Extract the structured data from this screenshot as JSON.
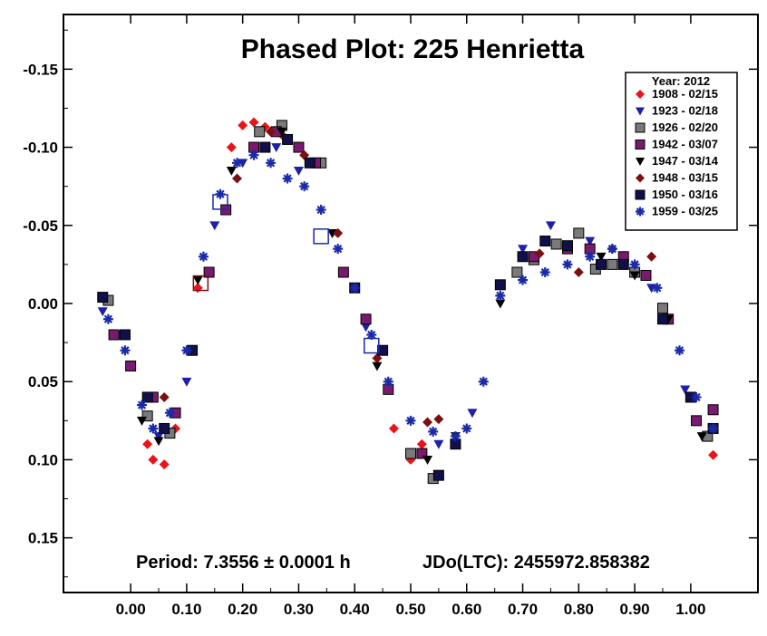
{
  "chart_data": {
    "type": "scatter",
    "title": "Phased Plot: 225 Henrietta",
    "xlabel": "",
    "ylabel": "",
    "xlim": [
      -0.12,
      1.12
    ],
    "ylim": [
      0.185,
      -0.185
    ],
    "y_inverted": true,
    "x_ticks": [
      "0.00",
      "0.10",
      "0.20",
      "0.30",
      "0.40",
      "0.50",
      "0.60",
      "0.70",
      "0.80",
      "0.90",
      "1.00"
    ],
    "y_ticks": [
      "-0.15",
      "-0.10",
      "-0.05",
      "0.00",
      "0.05",
      "0.10",
      "0.15"
    ],
    "grid": false,
    "legend_position": "top-right",
    "legend_title": "Year: 2012",
    "annotations": {
      "period": "Period: 7.3556 ± 0.0001 h",
      "epoch": "JDo(LTC): 2455972.858382"
    },
    "series": [
      {
        "name": "1908 - 02/15",
        "marker": "diamond",
        "color": "#e8141a",
        "x": [
          0.03,
          0.04,
          0.06,
          0.08,
          0.12,
          0.18,
          0.2,
          0.22,
          0.24,
          0.27,
          0.47,
          0.5,
          0.52,
          1.04
        ],
        "y": [
          0.09,
          0.1,
          0.103,
          0.08,
          -0.01,
          -0.1,
          -0.114,
          -0.116,
          -0.113,
          -0.108,
          0.08,
          0.1,
          0.09,
          0.097
        ]
      },
      {
        "name": "1923 - 02/18",
        "marker": "triangle-down",
        "color": "#1f1fa8",
        "x": [
          -0.05,
          -0.02,
          0.05,
          0.1,
          0.15,
          0.2,
          0.26,
          0.3,
          0.36,
          0.42,
          0.55,
          0.61,
          0.7,
          0.75,
          0.82,
          0.88,
          0.93,
          0.99
        ],
        "y": [
          0.005,
          0.02,
          0.085,
          0.05,
          -0.05,
          -0.09,
          -0.1,
          -0.085,
          -0.045,
          0.015,
          0.09,
          0.07,
          -0.035,
          -0.05,
          -0.04,
          -0.03,
          -0.01,
          0.055
        ]
      },
      {
        "name": "1926 - 02/20",
        "marker": "square",
        "color": "#7a7a7a",
        "x": [
          -0.04,
          0.03,
          0.07,
          0.23,
          0.27,
          0.34,
          0.5,
          0.54,
          0.69,
          0.72,
          0.76,
          0.8,
          0.83,
          0.86,
          0.9,
          0.95,
          1.03
        ],
        "y": [
          -0.002,
          0.072,
          0.083,
          -0.11,
          -0.114,
          -0.09,
          0.096,
          0.112,
          -0.02,
          -0.028,
          -0.038,
          -0.045,
          -0.022,
          -0.025,
          -0.02,
          0.003,
          0.085
        ]
      },
      {
        "name": "1942 - 03/07",
        "marker": "square",
        "color": "#7a1a6e",
        "x": [
          -0.03,
          0.0,
          0.04,
          0.08,
          0.14,
          0.17,
          0.22,
          0.26,
          0.3,
          0.33,
          0.38,
          0.42,
          0.46,
          0.52,
          0.72,
          0.78,
          0.82,
          0.88,
          0.92,
          0.96,
          1.01,
          1.04
        ],
        "y": [
          0.02,
          0.04,
          0.06,
          0.07,
          -0.02,
          -0.06,
          -0.1,
          -0.11,
          -0.1,
          -0.09,
          -0.02,
          0.01,
          0.055,
          0.096,
          -0.03,
          -0.035,
          -0.035,
          -0.03,
          -0.018,
          0.01,
          0.075,
          0.068
        ]
      },
      {
        "name": "1947 - 03/14",
        "marker": "triangle-down",
        "color": "#000000",
        "x": [
          0.02,
          0.05,
          0.12,
          0.18,
          0.27,
          0.36,
          0.44,
          0.53,
          0.58,
          0.66,
          0.74,
          0.84,
          0.9,
          0.96,
          1.02
        ],
        "y": [
          0.075,
          0.088,
          -0.015,
          -0.085,
          -0.11,
          -0.045,
          0.04,
          0.1,
          0.085,
          0.0,
          -0.04,
          -0.03,
          -0.018,
          0.01,
          0.085
        ]
      },
      {
        "name": "1948 - 03/15",
        "marker": "diamond",
        "color": "#7a1010",
        "x": [
          0.06,
          0.19,
          0.25,
          0.31,
          0.37,
          0.44,
          0.53,
          0.55,
          0.73,
          0.8,
          0.86,
          0.93
        ],
        "y": [
          0.06,
          -0.08,
          -0.11,
          -0.095,
          -0.045,
          0.035,
          0.076,
          0.074,
          -0.032,
          -0.02,
          -0.035,
          -0.03
        ],
        "open_x": [
          0.125
        ],
        "open_y": [
          -0.013
        ]
      },
      {
        "name": "1950 - 03/16",
        "marker": "square",
        "color": "#10104a",
        "x": [
          -0.05,
          -0.01,
          0.03,
          0.06,
          0.11,
          0.24,
          0.28,
          0.32,
          0.4,
          0.45,
          0.55,
          0.58,
          0.66,
          0.7,
          0.74,
          0.78,
          0.84,
          0.88,
          0.95,
          1.0,
          1.04
        ],
        "y": [
          -0.004,
          0.02,
          0.06,
          0.08,
          0.03,
          -0.1,
          -0.105,
          -0.09,
          -0.01,
          0.03,
          0.11,
          0.09,
          -0.012,
          -0.03,
          -0.04,
          -0.037,
          -0.025,
          -0.025,
          0.01,
          0.06,
          0.08
        ]
      },
      {
        "name": "1959 - 03/25",
        "marker": "asterisk",
        "color": "#1a2aa8",
        "x": [
          -0.04,
          -0.01,
          0.02,
          0.04,
          0.07,
          0.1,
          0.13,
          0.16,
          0.19,
          0.22,
          0.25,
          0.28,
          0.31,
          0.34,
          0.37,
          0.4,
          0.43,
          0.46,
          0.5,
          0.54,
          0.58,
          0.6,
          0.63,
          0.66,
          0.7,
          0.74,
          0.78,
          0.82,
          0.86,
          0.9,
          0.94,
          0.98,
          1.01,
          1.04
        ],
        "y": [
          0.01,
          0.03,
          0.065,
          0.08,
          0.07,
          0.03,
          -0.03,
          -0.07,
          -0.09,
          -0.095,
          -0.09,
          -0.08,
          -0.075,
          -0.06,
          -0.035,
          -0.01,
          0.02,
          0.05,
          0.075,
          0.082,
          0.085,
          0.08,
          0.05,
          -0.005,
          -0.015,
          -0.02,
          -0.025,
          -0.03,
          -0.035,
          -0.025,
          -0.01,
          0.03,
          0.06,
          0.08
        ],
        "open_x": [
          0.16,
          0.34,
          0.43
        ],
        "open_y": [
          -0.065,
          -0.043,
          0.027
        ]
      }
    ]
  }
}
